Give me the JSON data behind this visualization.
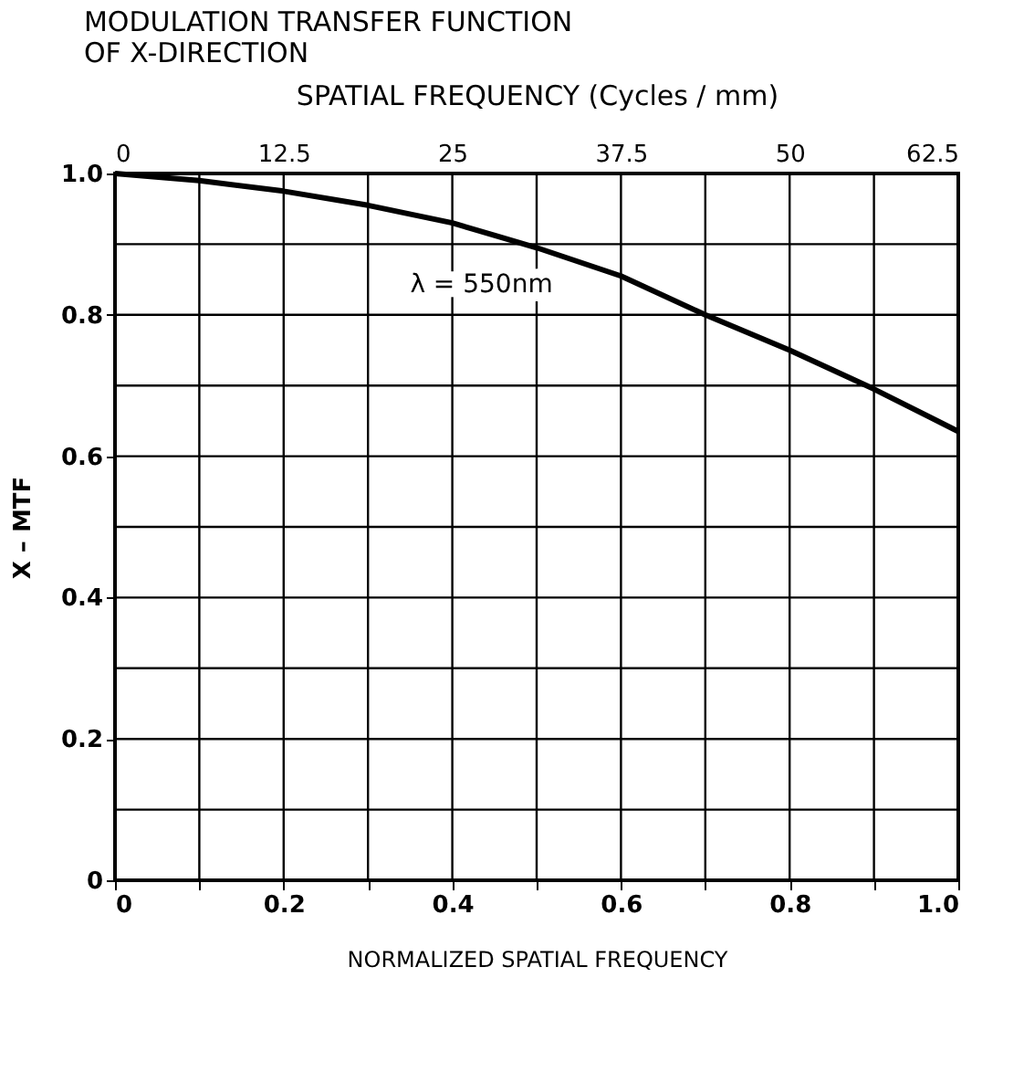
{
  "chart_data": {
    "type": "line",
    "title": [
      "MODULATION TRANSFER FUNCTION",
      "OF X-DIRECTION"
    ],
    "x2label": "SPATIAL FREQUENCY   (Cycles / mm)",
    "xlabel": "NORMALIZED SPATIAL FREQUENCY",
    "ylabel": "X – MTF",
    "x": [
      0,
      0.1,
      0.2,
      0.3,
      0.4,
      0.5,
      0.6,
      0.7,
      0.8,
      0.9,
      1.0
    ],
    "series": [
      {
        "color": "#000000",
        "values": [
          1.0,
          0.99,
          0.975,
          0.955,
          0.93,
          0.895,
          0.855,
          0.8,
          0.75,
          0.695,
          0.635
        ]
      }
    ],
    "xlim": [
      0,
      1.0
    ],
    "xticks": [
      0,
      {
        "value": 0.1,
        "label": null
      },
      0.2,
      {
        "value": 0.3,
        "label": null
      },
      0.4,
      {
        "value": 0.5,
        "label": null
      },
      0.6,
      {
        "value": 0.7,
        "label": null
      },
      0.8,
      {
        "value": 0.9,
        "label": null
      },
      {
        "value": 1.0,
        "label": "1.0"
      }
    ],
    "ylim": [
      0,
      1.0
    ],
    "yticks": [
      0,
      {
        "value": 0.1,
        "label": null
      },
      0.2,
      {
        "value": 0.3,
        "label": null
      },
      0.4,
      {
        "value": 0.5,
        "label": null
      },
      0.6,
      {
        "value": 0.7,
        "label": null
      },
      0.8,
      {
        "value": 0.9,
        "label": null
      },
      {
        "value": 1.0,
        "label": "1.0"
      }
    ],
    "x2lim": [
      0,
      62.5
    ],
    "x2ticks": [
      0,
      {
        "value": 12.5,
        "label": "12.5"
      },
      25,
      {
        "value": 37.5,
        "label": "37.5"
      },
      50,
      {
        "value": 62.5,
        "label": "62.5"
      }
    ],
    "annotations": [
      "λ = 550nm"
    ],
    "grid": true,
    "marker": "none",
    "line_style": "solid"
  }
}
